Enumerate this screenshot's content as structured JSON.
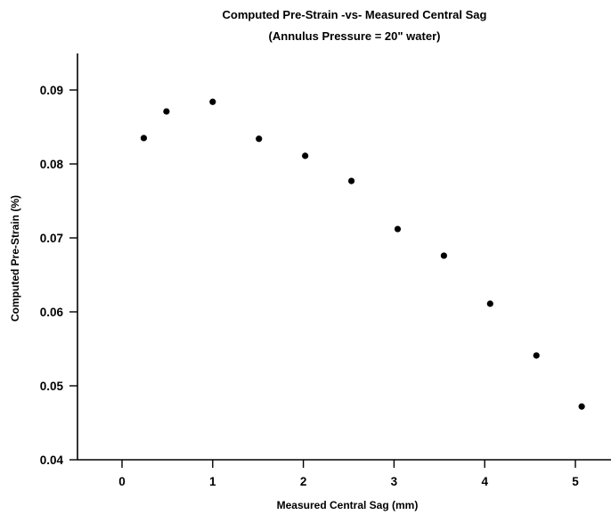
{
  "chart_data": {
    "type": "scatter",
    "title": "Computed Pre-Strain -vs- Measured Central Sag",
    "subtitle": "(Annulus Pressure = 20\" water)",
    "xlabel": "Measured Central Sag (mm)",
    "ylabel": "Computed Pre-Strain (%)",
    "xlim": [
      -0.5,
      5.35
    ],
    "ylim": [
      0.04,
      0.0955
    ],
    "x_ticks": [
      0,
      1,
      2,
      3,
      4,
      5
    ],
    "x_tick_labels": [
      "0",
      "1",
      "2",
      "3",
      "4",
      "5"
    ],
    "y_ticks": [
      0.04,
      0.05,
      0.06,
      0.07,
      0.08,
      0.09
    ],
    "y_tick_labels": [
      "0.04",
      "0.05",
      "0.06",
      "0.07",
      "0.08",
      "0.09"
    ],
    "grid": false,
    "marker_color": "#000000",
    "x": [
      0.24,
      0.49,
      1.0,
      1.51,
      2.02,
      2.53,
      3.04,
      3.55,
      4.06,
      4.57,
      5.07
    ],
    "y": [
      0.0835,
      0.0871,
      0.0884,
      0.0834,
      0.0811,
      0.0777,
      0.0712,
      0.0676,
      0.0611,
      0.0541,
      0.0472
    ]
  }
}
